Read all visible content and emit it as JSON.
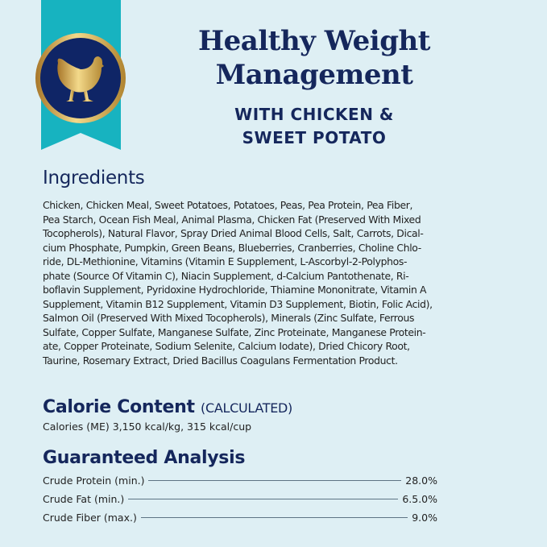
{
  "header": {
    "title": "Healthy Weight Management",
    "subtitle_lines": [
      "WITH CHICKEN &",
      "SWEET POTATO"
    ],
    "badge_icon": "chicken-icon",
    "colors": {
      "ribbon": "#17b3c0",
      "badge": "#0f2566",
      "gold": "#c9a24a",
      "title": "#15275c"
    }
  },
  "ingredients": {
    "heading": "Ingredients",
    "lines": [
      "Chicken, Chicken Meal, Sweet Potatoes, Potatoes, Peas, Pea Protein, Pea Fiber,",
      "Pea Starch, Ocean Fish Meal, Animal Plasma, Chicken Fat (Preserved With Mixed",
      "Tocopherols), Natural Flavor, Spray Dried Animal Blood Cells, Salt, Carrots, Dical-",
      "cium Phosphate, Pumpkin, Green Beans, Blueberries, Cranberries, Choline Chlo-",
      "ride, DL-Methionine, Vitamins (Vitamin E Supplement, L-Ascorbyl-2-Polyphos-",
      "phate (Source Of Vitamin C), Niacin Supplement, d-Calcium Pantothenate, Ri-",
      "boflavin Supplement, Pyridoxine Hydrochloride, Thiamine Mononitrate, Vitamin A",
      "Supplement, Vitamin B12 Supplement, Vitamin D3 Supplement, Biotin, Folic Acid),",
      "Salmon Oil (Preserved With Mixed Tocopherols), Minerals (Zinc Sulfate, Ferrous",
      "Sulfate, Copper Sulfate, Manganese Sulfate, Zinc Proteinate, Manganese Protein-",
      "ate, Copper Proteinate, Sodium Selenite, Calcium Iodate), Dried Chicory Root,",
      "Taurine, Rosemary Extract, Dried Bacillus Coagulans Fermentation Product."
    ]
  },
  "calorie": {
    "heading": "Calorie Content",
    "heading_sub": "(CALCULATED)",
    "text": "Calories (ME) 3,150 kcal/kg, 315 kcal/cup"
  },
  "analysis": {
    "heading": "Guaranteed Analysis",
    "rows": [
      {
        "label": "Crude Protein (min.)",
        "value": "28.0%"
      },
      {
        "label": "Crude Fat (min.)",
        "value": "6.5.0%"
      },
      {
        "label": "Crude Fiber (max.)",
        "value": "9.0%"
      }
    ]
  }
}
